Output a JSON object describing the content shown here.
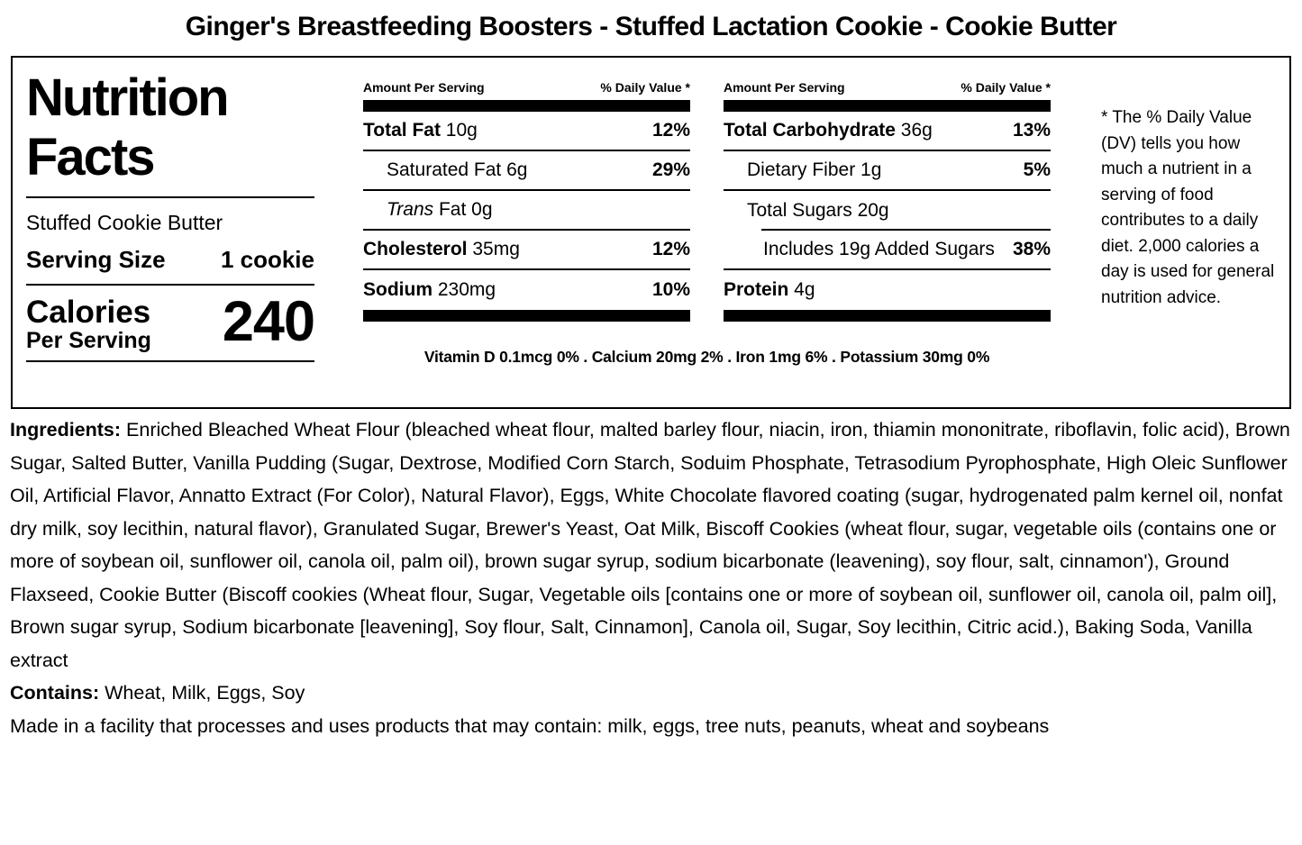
{
  "title": "Ginger's Breastfeeding Boosters - Stuffed Lactation Cookie - Cookie Butter",
  "label": {
    "heading_line1": "Nutrition",
    "heading_line2": "Facts",
    "variant": "Stuffed Cookie Butter",
    "serving_size_label": "Serving Size",
    "serving_size_value": "1 cookie",
    "calories_label": "Calories",
    "calories_sublabel": "Per Serving",
    "calories_value": "240",
    "amount_header": "Amount Per Serving",
    "dv_header": "% Daily Value *",
    "cols": [
      {
        "rows": [
          {
            "bold_text": "Total Fat",
            "text": " 10g",
            "dv": "12%"
          },
          {
            "text": "Saturated Fat 6g",
            "dv": "29%"
          },
          {
            "italic_text": "Trans",
            "text": " Fat 0g",
            "dv": ""
          },
          {
            "bold_text": "Cholesterol",
            "text": " 35mg",
            "dv": "12%"
          },
          {
            "bold_text": "Sodium",
            "text": " 230mg",
            "dv": "10%"
          }
        ]
      },
      {
        "rows": [
          {
            "bold_text": "Total Carbohydrate",
            "text": " 36g",
            "dv": "13%"
          },
          {
            "text": "Dietary Fiber 1g",
            "dv": "5%"
          },
          {
            "text": "Total Sugars 20g",
            "dv": ""
          },
          {
            "text": "Includes 19g Added Sugars",
            "dv": "38%"
          },
          {
            "bold_text": "Protein",
            "text": " 4g",
            "dv": ""
          }
        ]
      }
    ],
    "micronutrients": "Vitamin D 0.1mcg 0% . Calcium 20mg 2% . Iron 1mg 6% . Potassium 30mg 0%",
    "footnote": "* The % Daily Value (DV) tells you how much a nutrient in a serving of food contributes to a daily diet. 2,000 calories a day is used for general nutrition advice."
  },
  "ingredients": {
    "label": "Ingredients: ",
    "text": "Enriched Bleached Wheat Flour (bleached wheat flour, malted barley flour, niacin, iron, thiamin mononitrate, riboflavin, folic acid), Brown Sugar, Salted Butter, Vanilla Pudding (Sugar, Dextrose, Modified Corn Starch, Soduim Phosphate, Tetrasodium Pyrophosphate, High Oleic Sunflower Oil, Artificial Flavor, Annatto Extract (For Color), Natural Flavor), Eggs, White Chocolate flavored coating (sugar, hydrogenated palm kernel oil, nonfat dry milk, soy lecithin, natural flavor), Granulated Sugar, Brewer's Yeast, Oat Milk, Biscoff Cookies (wheat flour, sugar, vegetable oils (contains one or more of soybean oil, sunflower oil, canola oil, palm oil), brown sugar syrup, sodium bicarbonate (leavening), soy flour, salt, cinnamon'), Ground Flaxseed, Cookie Butter (Biscoff cookies (Wheat flour, Sugar, Vegetable oils [contains one or more of soybean oil, sunflower oil, canola oil, palm oil], Brown sugar syrup, Sodium bicarbonate [leavening], Soy flour, Salt, Cinnamon], Canola oil, Sugar, Soy lecithin, Citric acid.), Baking Soda, Vanilla extract",
    "contains_label": "Contains: ",
    "contains_text": "Wheat, Milk, Eggs, Soy",
    "facility_text": "Made in a facility that processes and uses products that may contain: milk, eggs, tree nuts, peanuts, wheat and soybeans"
  }
}
